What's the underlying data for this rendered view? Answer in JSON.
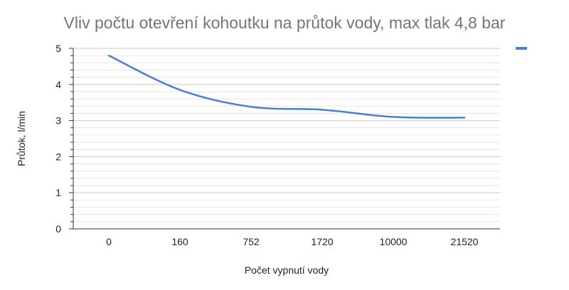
{
  "chart_data": {
    "type": "line",
    "title": "Vliv počtu otevření kohoutku na průtok vody, max tlak 4,8 bar",
    "xlabel": "Počet vypnutí vody",
    "ylabel": "Průtok, l/min",
    "categories": [
      "0",
      "160",
      "752",
      "1720",
      "10000",
      "21520"
    ],
    "ylim": [
      0,
      5
    ],
    "yticks": [
      "0",
      "1",
      "2",
      "3",
      "4",
      "5"
    ],
    "series": [
      {
        "values": [
          4.8,
          3.85,
          3.38,
          3.3,
          3.1,
          3.08
        ]
      }
    ],
    "grid": true,
    "legend": "top-right",
    "colors": {
      "series": "#4a7fd4",
      "grid": "#cccccc",
      "axis": "#333333",
      "title": "#757575"
    }
  }
}
